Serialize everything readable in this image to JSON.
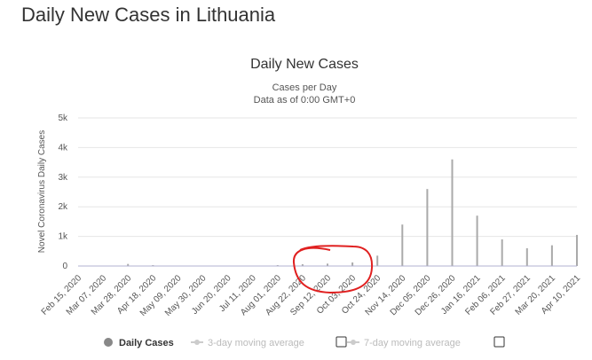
{
  "page": {
    "title": "Daily New Cases in Lithuania"
  },
  "chart_data": {
    "type": "bar",
    "title": "Daily New Cases",
    "subtitle_lines": [
      "Cases per Day",
      "Data as of 0:00 GMT+0"
    ],
    "ylabel": "Novel Coronavirus Daily Cases",
    "xlabel": "",
    "ylim": [
      0,
      5000
    ],
    "y_ticks": [
      {
        "value": 0,
        "label": "0"
      },
      {
        "value": 1000,
        "label": "1k"
      },
      {
        "value": 2000,
        "label": "2k"
      },
      {
        "value": 3000,
        "label": "3k"
      },
      {
        "value": 4000,
        "label": "4k"
      },
      {
        "value": 5000,
        "label": "5k"
      }
    ],
    "x_ticks": [
      "Feb 15, 2020",
      "Mar 07, 2020",
      "Mar 28, 2020",
      "Apr 18, 2020",
      "May 09, 2020",
      "May 30, 2020",
      "Jun 20, 2020",
      "Jul 11, 2020",
      "Aug 01, 2020",
      "Aug 22, 2020",
      "Sep 12, 2020",
      "Oct 03, 2020",
      "Oct 24, 2020",
      "Nov 14, 2020",
      "Dec 05, 2020",
      "Dec 26, 2020",
      "Jan 16, 2021",
      "Feb 06, 2021",
      "Feb 27, 2021",
      "Mar 20, 2021",
      "Apr 10, 2021"
    ],
    "grid": true,
    "bar_color": "#aaaaaa",
    "line_color": "#b0b0d0",
    "annotation_color": "#e02020",
    "series": [
      {
        "name": "Daily Cases",
        "dates": [
          "Feb 15, 2020",
          "Mar 07, 2020",
          "Mar 28, 2020",
          "Apr 18, 2020",
          "May 09, 2020",
          "May 30, 2020",
          "Jun 20, 2020",
          "Jul 11, 2020",
          "Aug 01, 2020",
          "Aug 22, 2020",
          "Sep 12, 2020",
          "Oct 03, 2020",
          "Oct 24, 2020",
          "Nov 14, 2020",
          "Dec 05, 2020",
          "Dec 26, 2020",
          "Jan 16, 2021",
          "Feb 06, 2021",
          "Feb 27, 2021",
          "Mar 20, 2021",
          "Apr 10, 2021"
        ],
        "values": [
          0,
          10,
          70,
          30,
          10,
          5,
          10,
          15,
          30,
          60,
          80,
          120,
          350,
          1400,
          2600,
          3600,
          1700,
          900,
          600,
          700,
          1050
        ]
      }
    ],
    "legend": [
      {
        "label": "Daily Cases",
        "active": true,
        "color": "#888888"
      },
      {
        "label": "3-day moving average",
        "active": false,
        "color": "#cccccc"
      },
      {
        "label": "7-day moving average",
        "active": false,
        "color": "#cccccc"
      }
    ]
  }
}
